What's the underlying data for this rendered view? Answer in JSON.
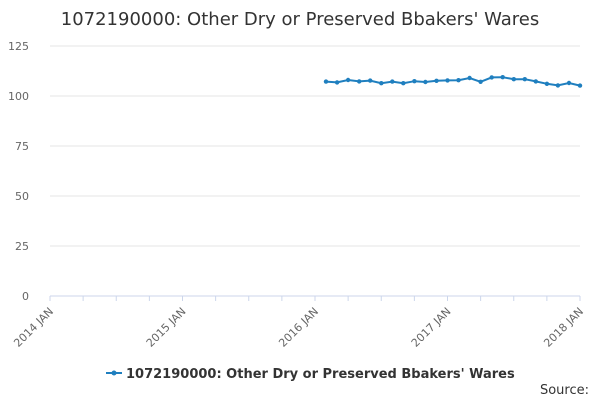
{
  "colors": {
    "series": "#1f7fbf",
    "grid": "#e6e6e6",
    "axis": "#ccd6eb",
    "text": "#333333",
    "tick_text": "#666666"
  },
  "chart_data": {
    "type": "line",
    "title": "1072190000: Other Dry or Preserved Bbakers' Wares",
    "xlabel": "",
    "ylabel": "",
    "ylim": [
      0,
      125
    ],
    "yticks": [
      "0",
      "25",
      "50",
      "75",
      "100",
      "125"
    ],
    "xticks": [
      "2014 JAN",
      "2015 JAN",
      "2016 JAN",
      "2017 JAN",
      "2018 JAN"
    ],
    "grid": true,
    "legend_position": "bottom-center",
    "source_label": "Source:",
    "series": [
      {
        "name": "1072190000: Other Dry or Preserved Bbakers' Wares",
        "x": [
          "2016-02",
          "2016-03",
          "2016-04",
          "2016-05",
          "2016-06",
          "2016-07",
          "2016-08",
          "2016-09",
          "2016-10",
          "2016-11",
          "2016-12",
          "2017-01",
          "2017-02",
          "2017-03",
          "2017-04",
          "2017-05",
          "2017-06",
          "2017-07",
          "2017-08",
          "2017-09",
          "2017-10",
          "2017-11",
          "2017-12",
          "2018-01"
        ],
        "values": [
          107.2,
          106.8,
          108.0,
          107.3,
          107.7,
          106.4,
          107.2,
          106.4,
          107.4,
          107.0,
          107.6,
          107.8,
          107.9,
          109.0,
          107.1,
          109.3,
          109.4,
          108.4,
          108.4,
          107.3,
          106.1,
          105.3,
          106.5,
          105.2
        ]
      }
    ]
  }
}
